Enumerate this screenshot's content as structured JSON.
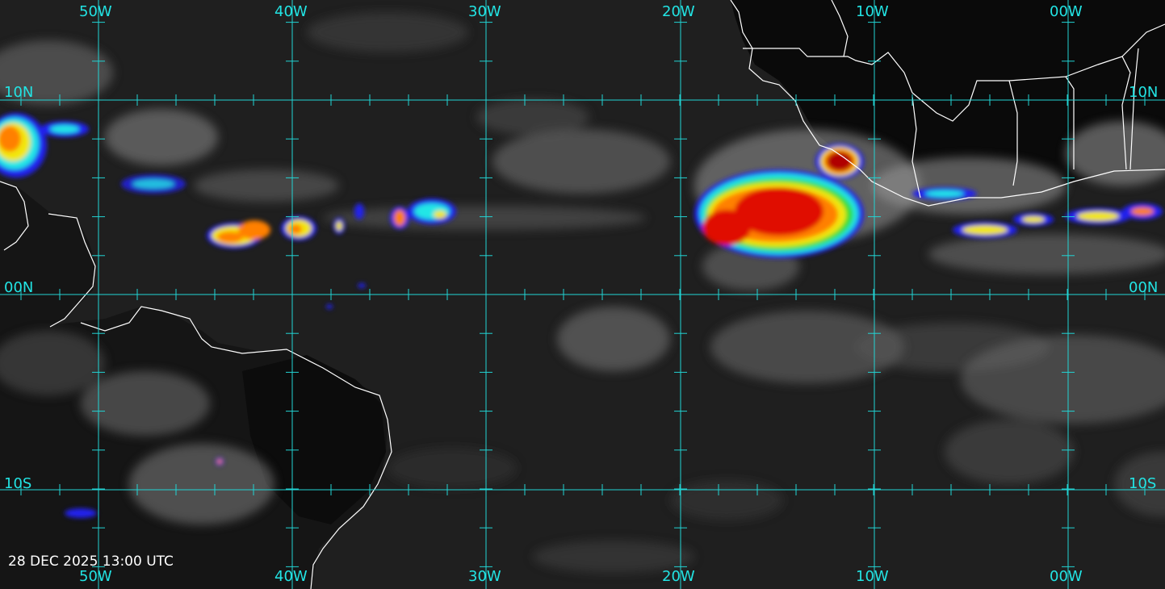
{
  "map": {
    "type": "infrared satellite imagery",
    "timestamp": "28 DEC 2025 13:00 UTC",
    "grid_color": "#22d4d4",
    "coastline_color": "#ffffff",
    "colors": {
      "cold_cloud_blue": "#2222ee",
      "cold_cloud_cyan": "#22e6e6",
      "cold_cloud_green": "#33dd33",
      "cold_cloud_yellow": "#f2e60f",
      "cold_cloud_orange": "#ff8000",
      "cold_cloud_red": "#e00a00",
      "cold_cloud_darkred": "#b00000"
    },
    "longitude_labels_top": [
      "50W",
      "40W",
      "30W",
      "20W",
      "10W",
      "00W"
    ],
    "longitude_labels_bottom": [
      "50W",
      "40W",
      "30W",
      "20W",
      "10W",
      "00W"
    ],
    "latitude_labels_left": [
      "10N",
      "00N",
      "10S"
    ],
    "latitude_labels_right": [
      "10N",
      "00N",
      "10S"
    ]
  }
}
